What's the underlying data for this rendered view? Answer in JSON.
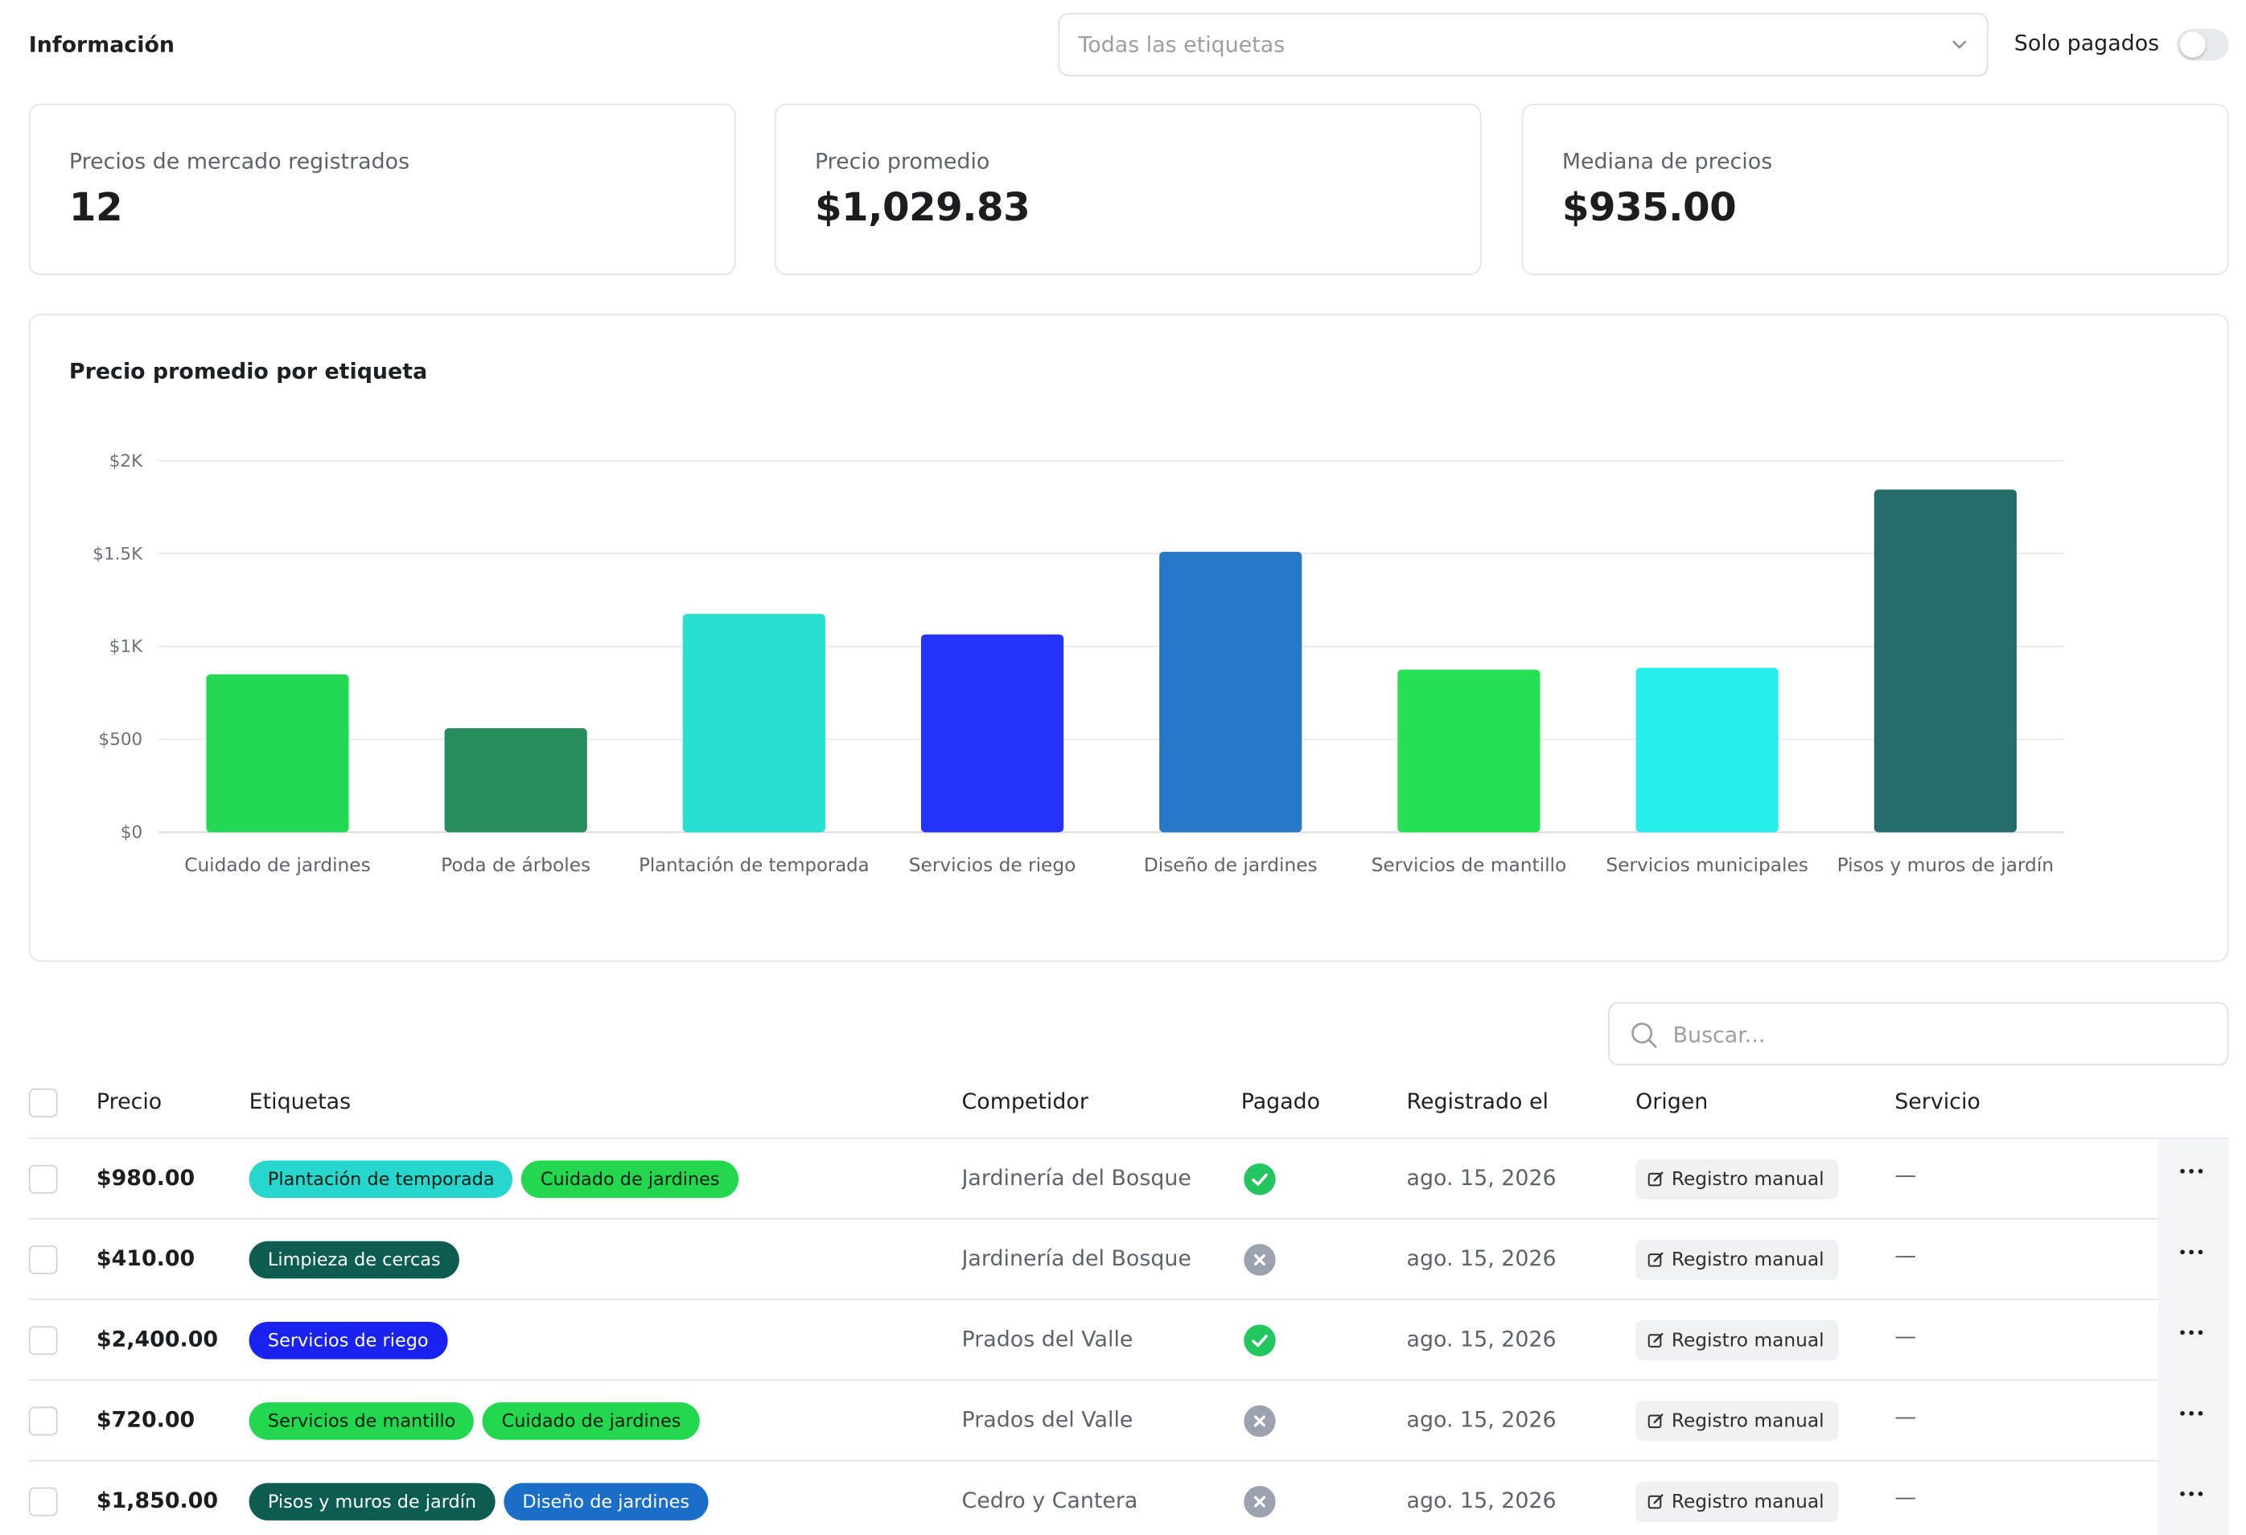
{
  "header": {
    "title": "Información",
    "tag_filter_placeholder": "Todas las etiquetas",
    "paid_only_label": "Solo pagados",
    "paid_only_on": false
  },
  "stats": [
    {
      "label": "Precios de mercado registrados",
      "value": "12"
    },
    {
      "label": "Precio promedio",
      "value": "$1,029.83"
    },
    {
      "label": "Mediana de precios",
      "value": "$935.00"
    }
  ],
  "chart_title": "Precio promedio por etiqueta",
  "chart_data": {
    "type": "bar",
    "title": "Precio promedio por etiqueta",
    "xlabel": "",
    "ylabel": "",
    "ylim": [
      0,
      2000
    ],
    "yticks": [
      0,
      500,
      1000,
      1500,
      2000
    ],
    "ytick_labels": [
      "$0",
      "$500",
      "$1K",
      "$1.5K",
      "$2K"
    ],
    "grid": true,
    "categories": [
      "Cuidado de jardines",
      "Poda de árboles",
      "Plantación de temporada",
      "Servicios de riego",
      "Diseño de jardines",
      "Servicios de mantillo",
      "Servicios municipales",
      "Pisos y muros de jardín"
    ],
    "values": [
      850,
      560,
      1175,
      1065,
      1510,
      875,
      885,
      1845
    ],
    "colors": [
      "#23d852",
      "#268c5c",
      "#27e0d2",
      "#2432fa",
      "#2878c8",
      "#25e052",
      "#27eeea",
      "#246d6a"
    ]
  },
  "search": {
    "placeholder": "Buscar...",
    "value": ""
  },
  "table": {
    "columns": [
      "Precio",
      "Etiquetas",
      "Competidor",
      "Pagado",
      "Registrado el",
      "Origen",
      "Servicio"
    ],
    "rows": [
      {
        "price": "$980.00",
        "tags": [
          {
            "label": "Plantación de temporada",
            "color": "#27d6cd"
          },
          {
            "label": "Cuidado de jardines",
            "color": "#23d84e"
          }
        ],
        "competitor": "Jardinería del Bosque",
        "paid": true,
        "date": "ago. 15, 2026",
        "origin": "Registro manual",
        "service": "—"
      },
      {
        "price": "$410.00",
        "tags": [
          {
            "label": "Limpieza de cercas",
            "color": "#0d5c52"
          }
        ],
        "competitor": "Jardinería del Bosque",
        "paid": false,
        "date": "ago. 15, 2026",
        "origin": "Registro manual",
        "service": "—"
      },
      {
        "price": "$2,400.00",
        "tags": [
          {
            "label": "Servicios de riego",
            "color": "#1a22f0"
          }
        ],
        "competitor": "Prados del Valle",
        "paid": true,
        "date": "ago. 15, 2026",
        "origin": "Registro manual",
        "service": "—"
      },
      {
        "price": "$720.00",
        "tags": [
          {
            "label": "Servicios de mantillo",
            "color": "#23d84e"
          },
          {
            "label": "Cuidado de jardines",
            "color": "#23d84e"
          }
        ],
        "competitor": "Prados del Valle",
        "paid": false,
        "date": "ago. 15, 2026",
        "origin": "Registro manual",
        "service": "—"
      },
      {
        "price": "$1,850.00",
        "tags": [
          {
            "label": "Pisos y muros de jardín",
            "color": "#0d5c52"
          },
          {
            "label": "Diseño de jardines",
            "color": "#1a6ec8"
          }
        ],
        "competitor": "Cedro y Cantera",
        "paid": false,
        "date": "ago. 15, 2026",
        "origin": "Registro manual",
        "service": "—"
      }
    ]
  },
  "status_colors": {
    "paid": "#22c55e",
    "unpaid": "#9ca3af"
  },
  "icons": {
    "dropdown": "chevron-down-icon",
    "search": "search-icon",
    "origin": "edit-icon",
    "more": "more-icon"
  }
}
